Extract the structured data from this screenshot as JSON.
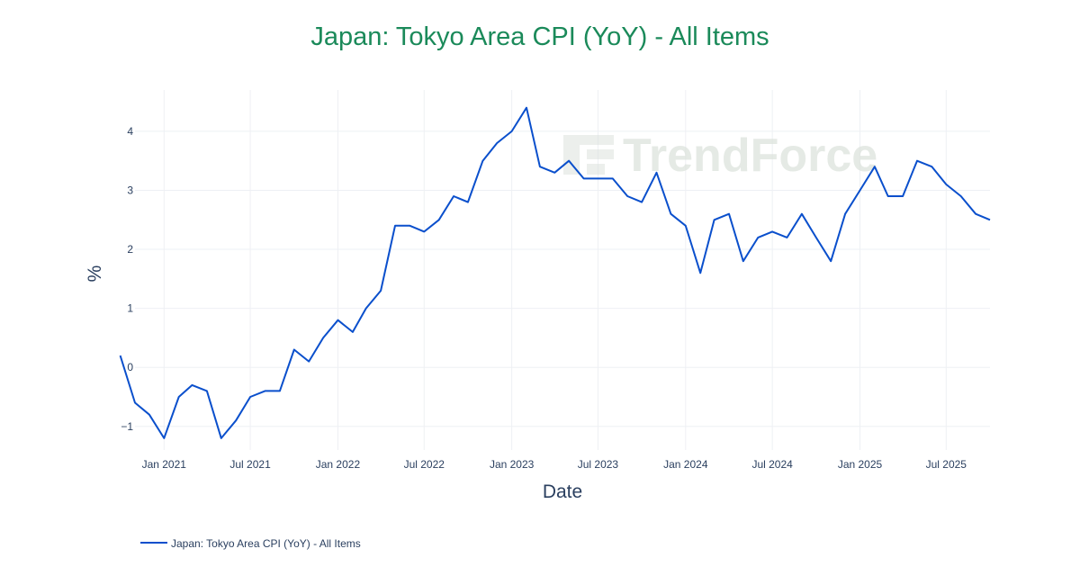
{
  "colors": {
    "title": "#1b8a5a",
    "line": "#0a4fcc",
    "grid": "#eef0f4",
    "axis_text": "#2a3f5f",
    "watermark": "#dde3dd"
  },
  "watermark": {
    "text": "TrendForce"
  },
  "chart_data": {
    "type": "line",
    "title": "Japan: Tokyo Area CPI (YoY) - All Items",
    "xlabel": "Date",
    "ylabel": "%",
    "xlim": [
      "2020-11-01",
      "2025-10-01"
    ],
    "ylim": [
      -1.4,
      4.7
    ],
    "yticks": [
      -1,
      0,
      1,
      2,
      3,
      4
    ],
    "ytick_labels": [
      "−1",
      "0",
      "1",
      "2",
      "3",
      "4"
    ],
    "xticks": [
      "2021-01-01",
      "2021-07-01",
      "2022-01-01",
      "2022-07-01",
      "2023-01-01",
      "2023-07-01",
      "2024-01-01",
      "2024-07-01",
      "2025-01-01",
      "2025-07-01"
    ],
    "xtick_labels": [
      "Jan 2021",
      "Jul 2021",
      "Jan 2022",
      "Jul 2022",
      "Jan 2023",
      "Jul 2023",
      "Jan 2024",
      "Jul 2024",
      "Jan 2025",
      "Jul 2025"
    ],
    "grid": true,
    "legend_position": "bottom-left",
    "series": [
      {
        "name": "Japan: Tokyo Area CPI (YoY) - All Items",
        "x": [
          "2020-11",
          "2020-12",
          "2021-01",
          "2021-02",
          "2021-03",
          "2021-04",
          "2021-05",
          "2021-06",
          "2021-07",
          "2021-08",
          "2021-09",
          "2021-10",
          "2021-11",
          "2021-12",
          "2022-01",
          "2022-02",
          "2022-03",
          "2022-04",
          "2022-05",
          "2022-06",
          "2022-07",
          "2022-08",
          "2022-09",
          "2022-10",
          "2022-11",
          "2022-12",
          "2023-01",
          "2023-02",
          "2023-03",
          "2023-04",
          "2023-05",
          "2023-06",
          "2023-07",
          "2023-08",
          "2023-09",
          "2023-10",
          "2023-11",
          "2023-12",
          "2024-01",
          "2024-02",
          "2024-03",
          "2024-04",
          "2024-05",
          "2024-06",
          "2024-07",
          "2024-08",
          "2024-09",
          "2024-10",
          "2024-11",
          "2024-12",
          "2025-01",
          "2025-02",
          "2025-03",
          "2025-04",
          "2025-05",
          "2025-06",
          "2025-07",
          "2025-08",
          "2025-09"
        ],
        "values": [
          -0.6,
          -0.8,
          -1.2,
          -0.5,
          -0.3,
          -0.4,
          -1.2,
          -0.9,
          -0.5,
          -0.4,
          -0.4,
          0.3,
          0.1,
          0.5,
          0.8,
          0.6,
          1.0,
          1.3,
          2.4,
          2.4,
          2.3,
          2.5,
          2.9,
          2.8,
          3.5,
          3.8,
          4.0,
          4.4,
          3.4,
          3.3,
          3.5,
          3.2,
          3.2,
          3.2,
          2.9,
          2.8,
          3.3,
          2.6,
          2.4,
          1.6,
          2.5,
          2.6,
          1.8,
          2.2,
          2.3,
          2.2,
          2.6,
          2.2,
          1.8,
          2.6,
          3.0,
          3.4,
          2.9,
          2.9,
          3.5,
          3.4,
          3.1,
          2.9,
          2.6
        ]
      }
    ],
    "series_start": {
      "x": "2020-10",
      "value": 0.2
    },
    "series_end": {
      "x": "2025-10",
      "value": 2.5
    }
  }
}
